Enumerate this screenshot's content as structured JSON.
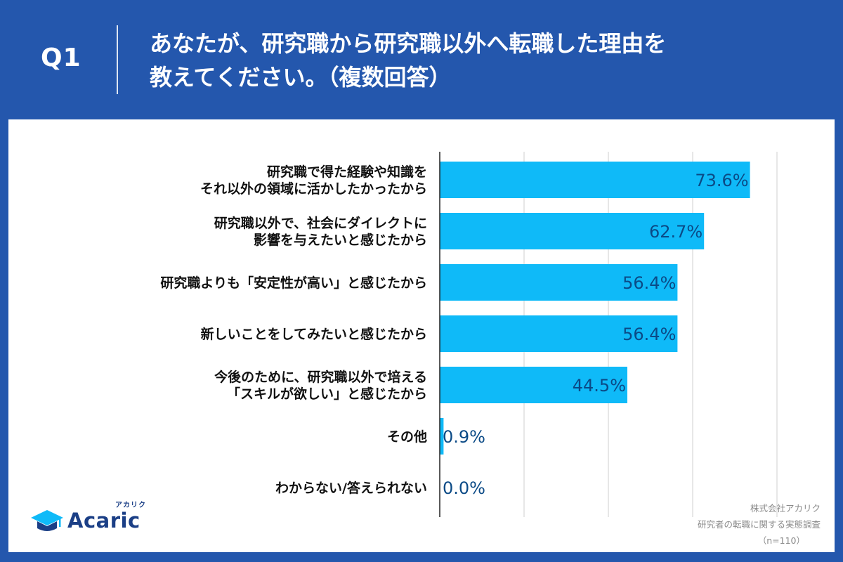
{
  "header": {
    "question_label": "Q1",
    "title_line1": "あなたが、研究職から研究職以外へ転職した理由を",
    "title_line2": "教えてください。（複数回答）"
  },
  "colors": {
    "background": "#2457ad",
    "bar": "#0fbaf8",
    "value_text": "#0b4a86",
    "label_text": "#111111",
    "grid": "#cfcfcf"
  },
  "chart_data": {
    "type": "bar",
    "orientation": "horizontal",
    "xlim": [
      0,
      100
    ],
    "grid": true,
    "categories": [
      [
        "研究職で得た経験や知識を",
        "それ以外の領域に活かしたかったから"
      ],
      [
        "研究職以外で、社会にダイレクトに",
        "影響を与えたいと感じたから"
      ],
      [
        "研究職よりも「安定性が高い」と感じたから"
      ],
      [
        "新しいことをしてみたいと感じたから"
      ],
      [
        "今後のために、研究職以外で培える",
        "「スキルが欲しい」と感じたから"
      ],
      [
        "その他"
      ],
      [
        "わからない/答えられない"
      ]
    ],
    "values": [
      73.6,
      62.7,
      56.4,
      56.4,
      44.5,
      0.9,
      0.0
    ],
    "value_labels": [
      "73.6%",
      "62.7%",
      "56.4%",
      "56.4%",
      "44.5%",
      "0.9%",
      "0.0%"
    ]
  },
  "brand": {
    "name": "Acaric",
    "kana": "アカリク",
    "icon": "graduation-cap-icon"
  },
  "credit": {
    "company": "株式会社アカリク",
    "survey": "研究者の転職に関する実態調査",
    "sample": "（n=110）"
  }
}
